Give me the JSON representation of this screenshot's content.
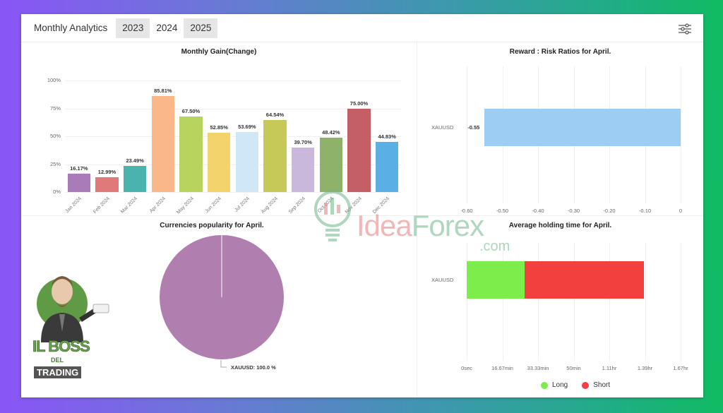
{
  "header": {
    "title": "Monthly Analytics",
    "tabs": [
      {
        "label": "2023",
        "active": false
      },
      {
        "label": "2024",
        "active": true
      },
      {
        "label": "2025",
        "active": false
      }
    ],
    "filter_icon": "sliders-icon"
  },
  "panels": {
    "monthly_gain": {
      "title": "Monthly Gain(Change)"
    },
    "reward_risk": {
      "title": "Reward : Risk Ratios for April."
    },
    "currencies": {
      "title": "Currencies popularity for April.",
      "slice_label": "XAUUSD: 100.0 %"
    },
    "holding_time": {
      "title": "Average holding time for April.",
      "legend": [
        {
          "label": "Long",
          "color": "#7ded4c"
        },
        {
          "label": "Short",
          "color": "#f2403f"
        }
      ]
    }
  },
  "branding": {
    "watermark": {
      "idea": "Idea",
      "forex": "Forex",
      "com": ".com"
    },
    "logo": {
      "line1": "IL BOSS",
      "line2": "DEL",
      "line3": "TRADING"
    }
  },
  "chart_data": [
    {
      "type": "bar",
      "title": "Monthly Gain(Change)",
      "categories": [
        "Jan 2024",
        "Feb 2024",
        "Mar 2024",
        "Apr 2024",
        "May 2024",
        "Jun 2024",
        "Jul 2024",
        "Aug 2024",
        "Sep 2024",
        "Oct 2024",
        "Nov 2024",
        "Dec 2024"
      ],
      "values": [
        16.17,
        12.99,
        23.49,
        85.81,
        67.5,
        52.85,
        53.69,
        64.54,
        39.7,
        48.42,
        75.0,
        44.83
      ],
      "value_labels": [
        "16.17%",
        "12.99%",
        "23.49%",
        "85.81%",
        "67.50%",
        "52.85%",
        "53.69%",
        "64.54%",
        "39.70%",
        "48.42%",
        "75.00%",
        "44.83%"
      ],
      "colors": [
        "#a97bb8",
        "#e07a7a",
        "#4bb3ad",
        "#f9b78a",
        "#b7d45f",
        "#f3d36b",
        "#cfe7f6",
        "#c6c957",
        "#c9b8dc",
        "#8fb26b",
        "#c45f66",
        "#5ab0e4"
      ],
      "xlabel": "",
      "ylabel": "",
      "yticks": [
        "0%",
        "25%",
        "50%",
        "75%",
        "100%"
      ],
      "ylim": [
        0,
        100
      ],
      "grid": true
    },
    {
      "type": "bar",
      "orientation": "horizontal",
      "title": "Reward : Risk Ratios for April.",
      "categories": [
        "XAUUSD"
      ],
      "values": [
        -0.55
      ],
      "value_labels": [
        "-0.55"
      ],
      "colors": [
        "#9ecdf3"
      ],
      "xticks": [
        "-0.60",
        "-0.50",
        "-0.40",
        "-0.30",
        "-0.20",
        "-0.10",
        "0"
      ],
      "xlim": [
        -0.6,
        0
      ],
      "grid": true
    },
    {
      "type": "pie",
      "title": "Currencies popularity for April.",
      "categories": [
        "XAUUSD"
      ],
      "values": [
        100.0
      ],
      "labels": [
        "XAUUSD: 100.0 %"
      ],
      "colors": [
        "#b07fb0"
      ]
    },
    {
      "type": "bar",
      "orientation": "horizontal",
      "stacked": true,
      "title": "Average holding time for April.",
      "categories": [
        "XAUUSD"
      ],
      "series": [
        {
          "name": "Long",
          "values": [
            27
          ],
          "unit": "min",
          "color": "#7ded4c"
        },
        {
          "name": "Short",
          "values": [
            56
          ],
          "unit": "min",
          "color": "#f2403f"
        }
      ],
      "xticks": [
        "0sec",
        "16.67min",
        "33.33min",
        "50min",
        "1.11hr",
        "1.39hr",
        "1.67hr"
      ],
      "xlim": [
        0,
        100
      ],
      "legend_position": "bottom",
      "grid": true
    }
  ]
}
